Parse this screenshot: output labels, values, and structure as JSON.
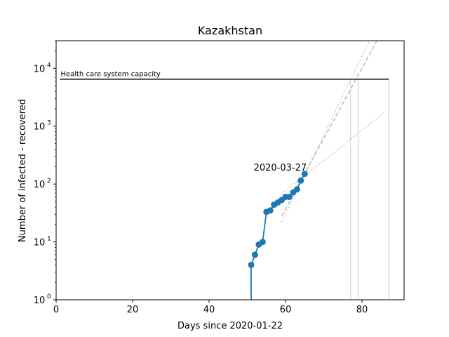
{
  "chart_data": {
    "type": "line",
    "title": "Kazakhstan",
    "xlabel": "Days since 2020-01-22",
    "ylabel": "Number of infected - recovered",
    "xlim": [
      0,
      91
    ],
    "ylim": [
      1,
      30000
    ],
    "yscale": "log",
    "grid": false,
    "x_ticks": [
      0,
      20,
      40,
      60,
      80
    ],
    "y_ticks": [
      {
        "value": 1,
        "base": "10",
        "exp": "0"
      },
      {
        "value": 10,
        "base": "10",
        "exp": "1"
      },
      {
        "value": 100,
        "base": "10",
        "exp": "2"
      },
      {
        "value": 1000,
        "base": "10",
        "exp": "3"
      },
      {
        "value": 10000,
        "base": "10",
        "exp": "4"
      }
    ],
    "series": [
      {
        "color": "#1f77b4",
        "x": [
          51,
          52,
          53,
          54,
          55,
          56,
          57,
          58,
          59,
          60,
          61,
          62,
          63,
          64,
          65
        ],
        "y": [
          4,
          6,
          9,
          10,
          33,
          35,
          44,
          48,
          53,
          60,
          60,
          72,
          81,
          115,
          150
        ]
      }
    ],
    "capacity": {
      "label": "Health care system capacity",
      "value": 6500,
      "x_range": [
        1,
        87
      ],
      "color": "#000000"
    },
    "annotation": {
      "text": "2020-03-27",
      "x": 58.6,
      "y": 170
    },
    "projections": [
      {
        "style": "dashed",
        "color": "#bbbbbb",
        "x": [
          59,
          84
        ],
        "y": [
          28,
          31000
        ]
      },
      {
        "style": "dotted",
        "color": "#bbbbbb",
        "x": [
          59,
          82
        ],
        "y": [
          22,
          31000
        ]
      },
      {
        "style": "dotted",
        "color": "#bbbbbb",
        "x": [
          59,
          86
        ],
        "y": [
          68,
          1750
        ]
      }
    ],
    "vertical_markers": {
      "color": "#dddddd",
      "x": [
        77,
        79,
        87
      ]
    },
    "left_drop": {
      "color": "#1f77b4",
      "x": 51
    }
  }
}
